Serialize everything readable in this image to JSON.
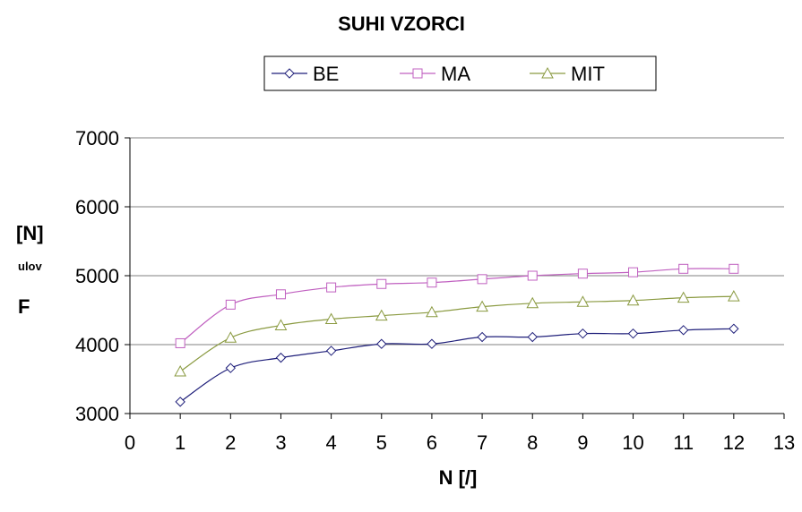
{
  "chart_data": {
    "type": "line",
    "title": "SUHI VZORCI",
    "xlabel": "N [/]",
    "ylabel": {
      "main": "F",
      "subscript": "ulov",
      "unit": "[N]"
    },
    "x": [
      1,
      2,
      3,
      4,
      5,
      6,
      7,
      8,
      9,
      10,
      11,
      12
    ],
    "xlim": [
      0,
      13
    ],
    "xticks": [
      0,
      1,
      2,
      3,
      4,
      5,
      6,
      7,
      8,
      9,
      10,
      11,
      12,
      13
    ],
    "ylim": [
      3000,
      7000
    ],
    "yticks": [
      3000,
      4000,
      5000,
      6000,
      7000
    ],
    "grid": "horizontal",
    "legend_position": "top",
    "series": [
      {
        "name": "BE",
        "marker": "diamond",
        "color": "#1f1f7a",
        "values": [
          3170,
          3660,
          3810,
          3910,
          4010,
          4010,
          4110,
          4110,
          4160,
          4160,
          4210,
          4230
        ]
      },
      {
        "name": "MA",
        "marker": "square",
        "color": "#c060c0",
        "values": [
          4020,
          4580,
          4730,
          4830,
          4880,
          4900,
          4950,
          5000,
          5030,
          5050,
          5100,
          5100
        ]
      },
      {
        "name": "MIT",
        "marker": "triangle",
        "color": "#8a9a40",
        "values": [
          3610,
          4100,
          4280,
          4370,
          4420,
          4470,
          4550,
          4600,
          4620,
          4640,
          4680,
          4700
        ]
      }
    ]
  }
}
